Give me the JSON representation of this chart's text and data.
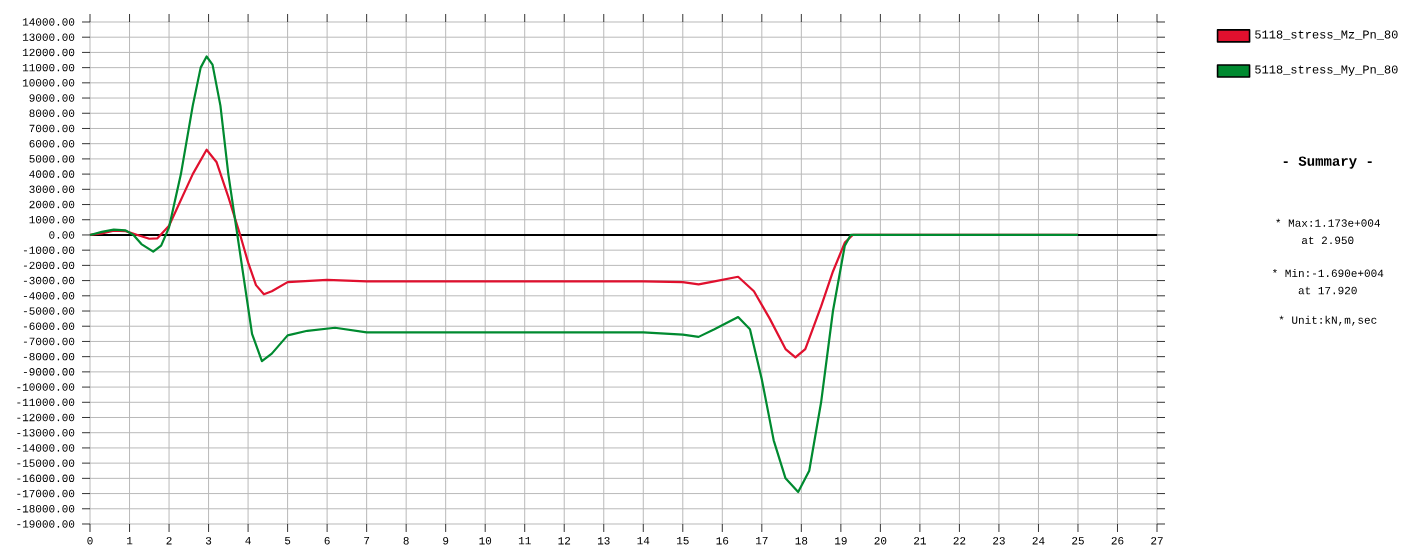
{
  "chart_data": {
    "type": "line",
    "xlim": [
      0,
      27
    ],
    "xticks": [
      0,
      1,
      2,
      3,
      4,
      5,
      6,
      7,
      8,
      9,
      10,
      11,
      12,
      13,
      14,
      15,
      16,
      17,
      18,
      19,
      20,
      21,
      22,
      23,
      24,
      25,
      26,
      27
    ],
    "ylim": [
      -19000,
      14000
    ],
    "yticks": [
      {
        "value": 14000,
        "label": "14000.00"
      },
      {
        "value": 13000,
        "label": "13000.00"
      },
      {
        "value": 12000,
        "label": "12000.00"
      },
      {
        "value": 11000,
        "label": "11000.00"
      },
      {
        "value": 10000,
        "label": "10000.00"
      },
      {
        "value": 9000,
        "label": "9000.00"
      },
      {
        "value": 8000,
        "label": "8000.00"
      },
      {
        "value": 7000,
        "label": "7000.00"
      },
      {
        "value": 6000,
        "label": "6000.00"
      },
      {
        "value": 5000,
        "label": "5000.00"
      },
      {
        "value": 4000,
        "label": "4000.00"
      },
      {
        "value": 3000,
        "label": "3000.00"
      },
      {
        "value": 2000,
        "label": "2000.00"
      },
      {
        "value": 1000,
        "label": "1000.00"
      },
      {
        "value": 0,
        "label": "0.00"
      },
      {
        "value": -1000,
        "label": "-1000.00"
      },
      {
        "value": -2000,
        "label": "-2000.00"
      },
      {
        "value": -3000,
        "label": "-3000.00"
      },
      {
        "value": -4000,
        "label": "-4000.00"
      },
      {
        "value": -5000,
        "label": "-5000.00"
      },
      {
        "value": -6000,
        "label": "-6000.00"
      },
      {
        "value": -7000,
        "label": "-7000.00"
      },
      {
        "value": -8000,
        "label": "-8000.00"
      },
      {
        "value": -9000,
        "label": "-9000.00"
      },
      {
        "value": -10000,
        "label": "-10000.00"
      },
      {
        "value": -11000,
        "label": "-11000.00"
      },
      {
        "value": -12000,
        "label": "-12000.00"
      },
      {
        "value": -13000,
        "label": "-13000.00"
      },
      {
        "value": -14000,
        "label": "-14000.00"
      },
      {
        "value": -15000,
        "label": "-15000.00"
      },
      {
        "value": -16000,
        "label": "-16000.00"
      },
      {
        "value": -17000,
        "label": "-17000.00"
      },
      {
        "value": -18000,
        "label": "-18000.00"
      },
      {
        "value": -19000,
        "label": "-19000.00"
      }
    ],
    "grid": true,
    "legend": "top right",
    "line_style": "solid",
    "ref_lines": [
      {
        "axis": "y",
        "value": 0,
        "color": "#000000"
      }
    ],
    "series": [
      {
        "name": "5118_stress_Mz_Pn_80",
        "color": "#e0102e",
        "x": [
          0,
          0.3,
          0.6,
          0.9,
          1.2,
          1.5,
          1.7,
          2.0,
          2.3,
          2.6,
          2.95,
          3.2,
          3.5,
          3.8,
          4.0,
          4.2,
          4.4,
          4.6,
          5.0,
          6.0,
          7,
          10,
          14,
          15,
          15.4,
          15.8,
          16.4,
          16.8,
          17.2,
          17.6,
          17.85,
          18.1,
          18.5,
          18.8,
          19.1,
          19.3,
          25
        ],
        "values": [
          0,
          100,
          280,
          250,
          0,
          -250,
          -230,
          600,
          2300,
          4000,
          5600,
          4800,
          2500,
          0,
          -1800,
          -3300,
          -3900,
          -3700,
          -3100,
          -2950,
          -3050,
          -3050,
          -3050,
          -3100,
          -3250,
          -3050,
          -2750,
          -3700,
          -5500,
          -7500,
          -8050,
          -7500,
          -4700,
          -2400,
          -500,
          0,
          0
        ]
      },
      {
        "name": "5118_stress_My_Pn_80",
        "color": "#008a30",
        "x": [
          0,
          0.3,
          0.6,
          0.9,
          1.1,
          1.3,
          1.6,
          1.8,
          2.0,
          2.3,
          2.6,
          2.8,
          2.95,
          3.1,
          3.3,
          3.5,
          3.7,
          3.9,
          4.1,
          4.35,
          4.6,
          5.0,
          5.5,
          6.2,
          7,
          10,
          14,
          15,
          15.4,
          15.8,
          16.4,
          16.7,
          17.0,
          17.3,
          17.6,
          17.92,
          18.2,
          18.5,
          18.8,
          19.1,
          19.25,
          25
        ],
        "values": [
          0,
          200,
          350,
          300,
          0,
          -600,
          -1100,
          -700,
          500,
          4000,
          8500,
          11000,
          11730,
          11200,
          8500,
          4000,
          500,
          -3000,
          -6500,
          -8300,
          -7800,
          -6600,
          -6300,
          -6100,
          -6400,
          -6400,
          -6400,
          -6550,
          -6700,
          -6200,
          -5400,
          -6200,
          -9500,
          -13500,
          -16000,
          -16900,
          -15500,
          -11000,
          -5000,
          -700,
          0,
          0
        ]
      }
    ],
    "annotations": [
      "- Summary -",
      "* Max:1.173e+004",
      "at  2.950",
      "* Min:-1.690e+004",
      "at 17.920",
      "* Unit:kN,m,sec"
    ]
  }
}
